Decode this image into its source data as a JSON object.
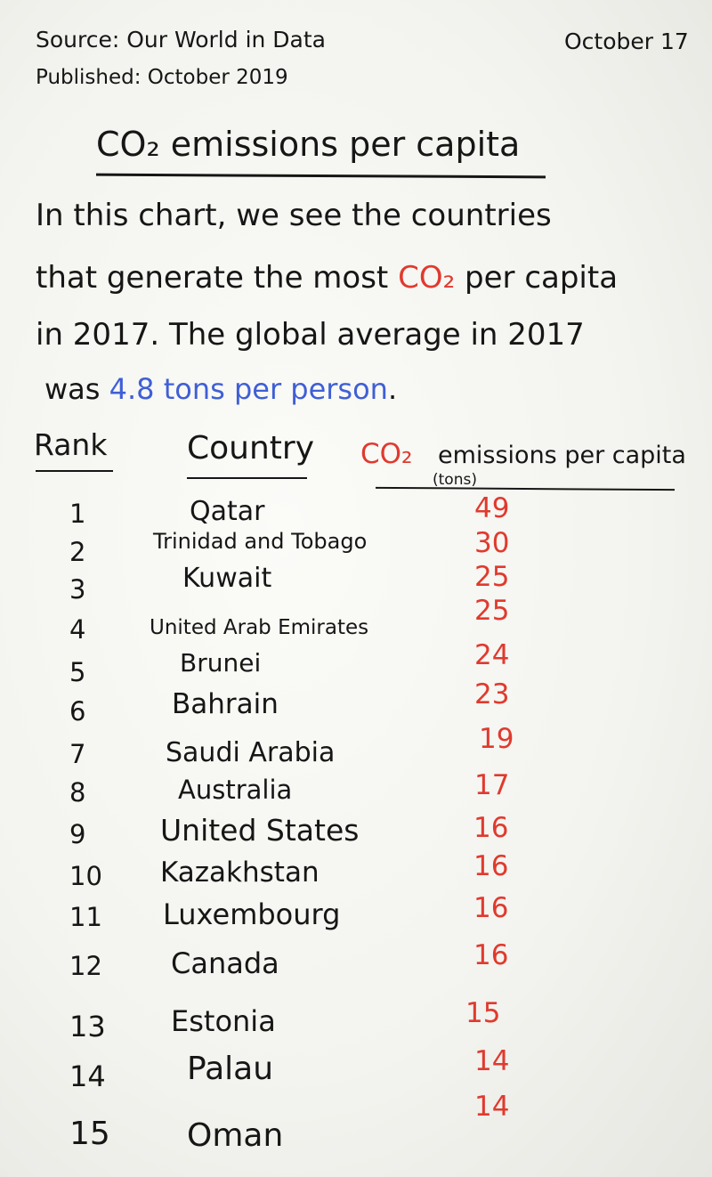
{
  "header": {
    "source": "Source: Our World in Data",
    "published": "Published: October 2019",
    "date": "October 17"
  },
  "title": "CO₂ emissions per capita",
  "paragraph": {
    "line1": "In this chart, we see the countries",
    "line2_a": "that generate the most ",
    "line2_co2": "CO₂",
    "line2_b": " per capita",
    "line3": "in 2017. The global average in 2017",
    "line4_a": "was ",
    "line4_value": "4.8 tons per person",
    "line4_b": "."
  },
  "table": {
    "col_rank": "Rank",
    "col_country": "Country",
    "col_metric_co2": "CO₂",
    "col_metric": "emissions per capita",
    "col_unit": "(tons)"
  },
  "chart_data": {
    "type": "table",
    "title": "CO₂ emissions per capita",
    "columns": [
      "Rank",
      "Country",
      "CO₂ emissions per capita (tons)"
    ],
    "rows": [
      {
        "rank": "1",
        "country": "Qatar",
        "value": 49
      },
      {
        "rank": "2",
        "country": "Trinidad and Tobago",
        "value": 30
      },
      {
        "rank": "3",
        "country": "Kuwait",
        "value": 25
      },
      {
        "rank": "4",
        "country": "United Arab Emirates",
        "value": 25
      },
      {
        "rank": "5",
        "country": "Brunei",
        "value": 24
      },
      {
        "rank": "6",
        "country": "Bahrain",
        "value": 23
      },
      {
        "rank": "7",
        "country": "Saudi Arabia",
        "value": 19
      },
      {
        "rank": "8",
        "country": "Australia",
        "value": 17
      },
      {
        "rank": "9",
        "country": "United States",
        "value": 16
      },
      {
        "rank": "10",
        "country": "Kazakhstan",
        "value": 16
      },
      {
        "rank": "11",
        "country": "Luxembourg",
        "value": 16
      },
      {
        "rank": "12",
        "country": "Canada",
        "value": 16
      },
      {
        "rank": "13",
        "country": "Estonia",
        "value": 15
      },
      {
        "rank": "14",
        "country": "Palau",
        "value": 14
      },
      {
        "rank": "15",
        "country": "Oman",
        "value": 14
      }
    ]
  },
  "colors": {
    "ink": "#161616",
    "highlight_red": "#e03a2e",
    "highlight_blue": "#3f5fd6",
    "board": "#f7f7f4"
  }
}
